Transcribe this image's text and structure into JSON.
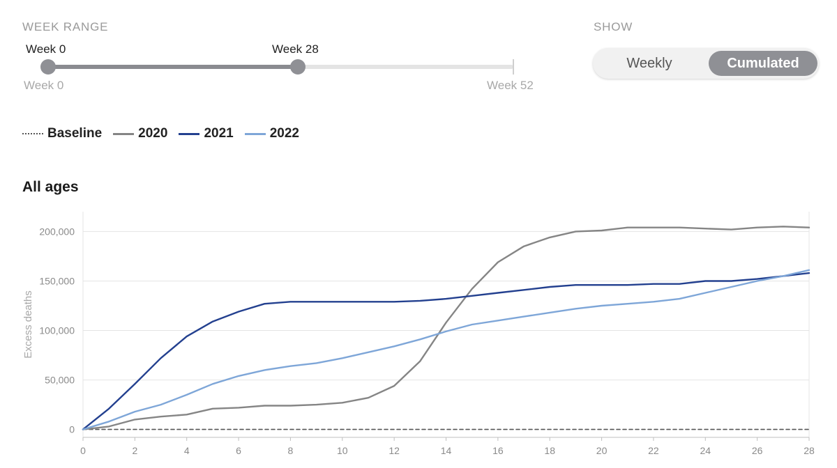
{
  "controls": {
    "week_range": {
      "label": "WEEK RANGE",
      "start_value_label": "Week 0",
      "end_value_label": "Week 28",
      "min_label": "Week 0",
      "max_label": "Week 52",
      "start": 0,
      "end": 28,
      "min": 0,
      "max": 52
    },
    "show": {
      "label": "SHOW",
      "options": [
        "Weekly",
        "Cumulated"
      ],
      "selected": "Cumulated"
    }
  },
  "legend": {
    "items": [
      {
        "label": "Baseline",
        "color": "#555555",
        "style": "dashed"
      },
      {
        "label": "2020",
        "color": "#858585",
        "style": "solid"
      },
      {
        "label": "2021",
        "color": "#23408f",
        "style": "solid"
      },
      {
        "label": "2022",
        "color": "#7ea6d8",
        "style": "solid"
      }
    ]
  },
  "chart_data": {
    "type": "line",
    "title": "All ages",
    "xlabel": "",
    "ylabel": "Excess deaths",
    "xlim": [
      0,
      28
    ],
    "ylim": [
      -8000,
      220000
    ],
    "x_ticks": [
      0,
      2,
      4,
      6,
      8,
      10,
      12,
      14,
      16,
      18,
      20,
      22,
      24,
      26,
      28
    ],
    "y_ticks": [
      0,
      50000,
      100000,
      150000,
      200000
    ],
    "y_tick_labels": [
      "0",
      "50,000",
      "100,000",
      "150,000",
      "200,000"
    ],
    "grid": true,
    "x": [
      0,
      1,
      2,
      3,
      4,
      5,
      6,
      7,
      8,
      9,
      10,
      11,
      12,
      13,
      14,
      15,
      16,
      17,
      18,
      19,
      20,
      21,
      22,
      23,
      24,
      25,
      26,
      27,
      28
    ],
    "series": [
      {
        "name": "Baseline",
        "color": "#555555",
        "dashed": true,
        "values": [
          0,
          0,
          0,
          0,
          0,
          0,
          0,
          0,
          0,
          0,
          0,
          0,
          0,
          0,
          0,
          0,
          0,
          0,
          0,
          0,
          0,
          0,
          0,
          0,
          0,
          0,
          0,
          0,
          0
        ]
      },
      {
        "name": "2020",
        "color": "#858585",
        "values": [
          0,
          3000,
          10000,
          13000,
          15000,
          21000,
          22000,
          24000,
          24000,
          25000,
          27000,
          32000,
          44000,
          69000,
          108000,
          142000,
          169000,
          185000,
          194000,
          200000,
          201000,
          204000,
          204000,
          204000,
          203000,
          202000,
          204000,
          205000,
          204000
        ]
      },
      {
        "name": "2021",
        "color": "#23408f",
        "values": [
          0,
          21000,
          46000,
          72000,
          94000,
          109000,
          119000,
          127000,
          129000,
          129000,
          129000,
          129000,
          129000,
          130000,
          132000,
          135000,
          138000,
          141000,
          144000,
          146000,
          146000,
          146000,
          147000,
          147000,
          150000,
          150000,
          152000,
          155000,
          158000
        ]
      },
      {
        "name": "2022",
        "color": "#7ea6d8",
        "values": [
          0,
          8000,
          18000,
          25000,
          35000,
          46000,
          54000,
          60000,
          64000,
          67000,
          72000,
          78000,
          84000,
          91000,
          99000,
          106000,
          110000,
          114000,
          118000,
          122000,
          125000,
          127000,
          129000,
          132000,
          138000,
          144000,
          150000,
          155000,
          161000
        ]
      }
    ]
  }
}
